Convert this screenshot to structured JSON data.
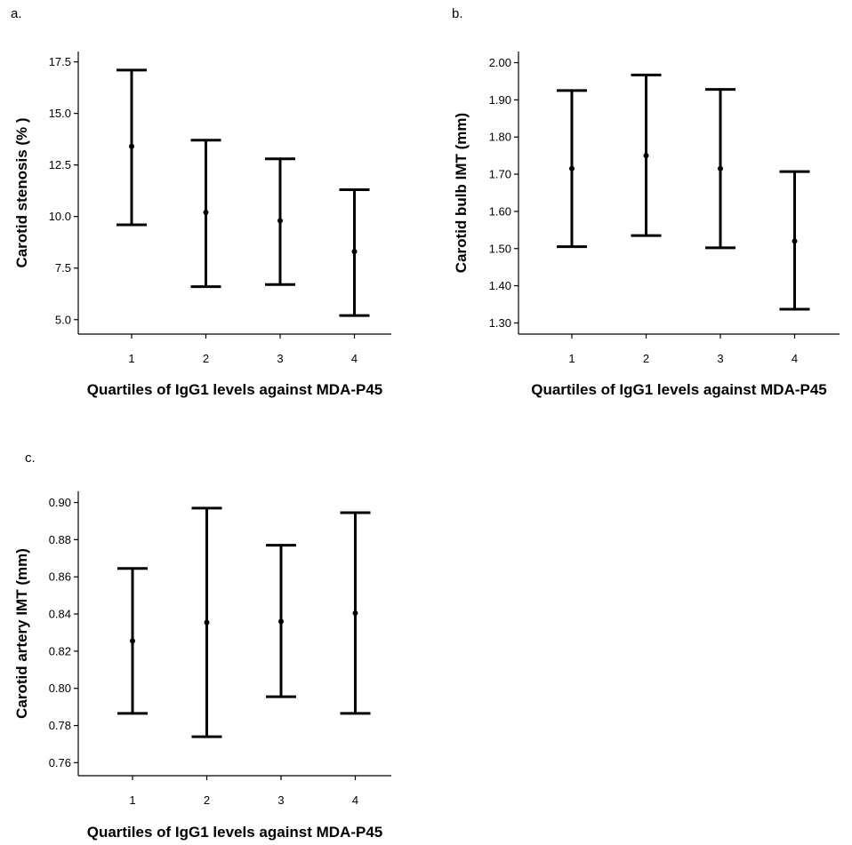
{
  "chart_data": [
    {
      "panel": "a.",
      "type": "errorbar",
      "ylabel": "Carotid stenosis (% )",
      "xlabel": "Quartiles of IgG1 levels against MDA-P45",
      "categories": [
        "1",
        "2",
        "3",
        "4"
      ],
      "yticks": [
        "5.0",
        "7.5",
        "10.0",
        "12.5",
        "15.0",
        "17.5"
      ],
      "ylim": [
        4.3,
        18.0
      ],
      "series": [
        {
          "mean": [
            13.4,
            10.2,
            9.8,
            8.3
          ],
          "lower": [
            9.6,
            6.6,
            6.7,
            5.2
          ],
          "upper": [
            17.1,
            13.7,
            12.8,
            11.3
          ]
        }
      ],
      "grid": false
    },
    {
      "panel": "b.",
      "type": "errorbar",
      "ylabel": "Carotid bulb IMT (mm)",
      "xlabel": "Quartiles of IgG1 levels against MDA-P45",
      "categories": [
        "1",
        "2",
        "3",
        "4"
      ],
      "yticks": [
        "1.30",
        "1.40",
        "1.50",
        "1.60",
        "1.70",
        "1.80",
        "1.90",
        "2.00"
      ],
      "ylim": [
        1.27,
        2.03
      ],
      "series": [
        {
          "mean": [
            1.715,
            1.75,
            1.715,
            1.52
          ],
          "lower": [
            1.505,
            1.535,
            1.502,
            1.337
          ],
          "upper": [
            1.925,
            1.967,
            1.928,
            1.707
          ]
        }
      ],
      "grid": false
    },
    {
      "panel": "c.",
      "type": "errorbar",
      "ylabel": "Carotid artery IMT (mm)",
      "xlabel": "Quartiles of IgG1 levels against MDA-P45",
      "categories": [
        "1",
        "2",
        "3",
        "4"
      ],
      "yticks": [
        "0.76",
        "0.78",
        "0.80",
        "0.82",
        "0.84",
        "0.86",
        "0.88",
        "0.90"
      ],
      "ylim": [
        0.753,
        0.906
      ],
      "series": [
        {
          "mean": [
            0.8255,
            0.8355,
            0.836,
            0.8405
          ],
          "lower": [
            0.7865,
            0.774,
            0.7955,
            0.7865
          ],
          "upper": [
            0.8645,
            0.897,
            0.877,
            0.8945
          ]
        }
      ],
      "grid": false
    }
  ]
}
